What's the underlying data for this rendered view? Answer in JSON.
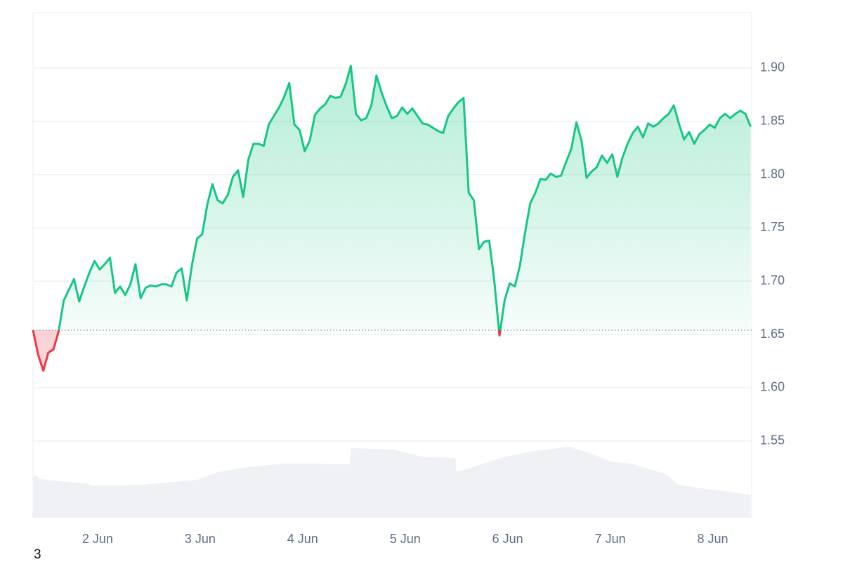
{
  "chart_data": {
    "type": "price-area",
    "color": "#16c784",
    "negative_color": "#ea3943",
    "grid": true,
    "xlim": [
      1.37,
      8.38
    ],
    "ylim": [
      1.478,
      1.952
    ],
    "xticks": [
      {
        "value": 2,
        "label": "2 Jun"
      },
      {
        "value": 3,
        "label": "3 Jun"
      },
      {
        "value": 4,
        "label": "4 Jun"
      },
      {
        "value": 5,
        "label": "5 Jun"
      },
      {
        "value": 6,
        "label": "6 Jun"
      },
      {
        "value": 7,
        "label": "7 Jun"
      },
      {
        "value": 8,
        "label": "8 Jun"
      }
    ],
    "yticks": [
      1.55,
      {
        "value": 1.6,
        "label": "1.60"
      },
      1.65,
      {
        "value": 1.7,
        "label": "1.70"
      },
      1.75,
      {
        "value": 1.8,
        "label": "1.80"
      },
      1.85,
      {
        "value": 1.9,
        "label": "1.90"
      }
    ],
    "x": [
      1.37,
      1.42,
      1.47,
      1.52,
      1.57,
      1.62,
      1.67,
      1.72,
      1.77,
      1.82,
      1.87,
      1.92,
      1.97,
      2.02,
      2.07,
      2.12,
      2.17,
      2.22,
      2.27,
      2.32,
      2.37,
      2.42,
      2.47,
      2.52,
      2.57,
      2.62,
      2.67,
      2.72,
      2.77,
      2.82,
      2.87,
      2.92,
      2.97,
      3.02,
      3.07,
      3.12,
      3.17,
      3.22,
      3.27,
      3.32,
      3.37,
      3.42,
      3.47,
      3.52,
      3.57,
      3.62,
      3.67,
      3.72,
      3.77,
      3.82,
      3.87,
      3.92,
      3.97,
      4.02,
      4.07,
      4.12,
      4.17,
      4.22,
      4.27,
      4.32,
      4.37,
      4.42,
      4.47,
      4.52,
      4.57,
      4.62,
      4.67,
      4.72,
      4.77,
      4.82,
      4.87,
      4.92,
      4.97,
      5.02,
      5.07,
      5.12,
      5.17,
      5.22,
      5.27,
      5.32,
      5.37,
      5.42,
      5.47,
      5.52,
      5.57,
      5.62,
      5.67,
      5.72,
      5.77,
      5.82,
      5.87,
      5.92,
      5.97,
      6.02,
      6.07,
      6.12,
      6.17,
      6.22,
      6.27,
      6.32,
      6.37,
      6.42,
      6.47,
      6.52,
      6.57,
      6.62,
      6.67,
      6.72,
      6.77,
      6.82,
      6.87,
      6.92,
      6.97,
      7.02,
      7.07,
      7.12,
      7.17,
      7.22,
      7.27,
      7.32,
      7.37,
      7.42,
      7.47,
      7.52,
      7.57,
      7.62,
      7.67,
      7.72,
      7.77,
      7.82,
      7.87,
      7.92,
      7.97,
      8.02,
      8.07,
      8.12,
      8.17,
      8.22,
      8.27,
      8.32,
      8.37
    ],
    "values": [
      1.654,
      1.631,
      1.616,
      1.633,
      1.636,
      1.653,
      1.682,
      1.692,
      1.702,
      1.681,
      1.695,
      1.708,
      1.719,
      1.711,
      1.716,
      1.722,
      1.689,
      1.695,
      1.687,
      1.697,
      1.716,
      1.684,
      1.694,
      1.696,
      1.695,
      1.697,
      1.697,
      1.695,
      1.708,
      1.712,
      1.682,
      1.715,
      1.74,
      1.744,
      1.772,
      1.791,
      1.776,
      1.773,
      1.781,
      1.798,
      1.804,
      1.779,
      1.814,
      1.829,
      1.829,
      1.827,
      1.847,
      1.855,
      1.863,
      1.873,
      1.886,
      1.847,
      1.842,
      1.822,
      1.832,
      1.856,
      1.862,
      1.866,
      1.874,
      1.872,
      1.873,
      1.885,
      1.902,
      1.857,
      1.851,
      1.853,
      1.865,
      1.893,
      1.877,
      1.864,
      1.853,
      1.855,
      1.863,
      1.857,
      1.862,
      1.855,
      1.848,
      1.847,
      1.844,
      1.841,
      1.839,
      1.855,
      1.862,
      1.868,
      1.872,
      1.783,
      1.776,
      1.73,
      1.737,
      1.738,
      1.7,
      1.649,
      1.682,
      1.698,
      1.695,
      1.715,
      1.746,
      1.773,
      1.783,
      1.796,
      1.795,
      1.801,
      1.798,
      1.799,
      1.812,
      1.824,
      1.849,
      1.832,
      1.797,
      1.803,
      1.807,
      1.818,
      1.811,
      1.819,
      1.798,
      1.816,
      1.829,
      1.839,
      1.845,
      1.835,
      1.848,
      1.845,
      1.848,
      1.853,
      1.857,
      1.865,
      1.848,
      1.833,
      1.84,
      1.829,
      1.838,
      1.842,
      1.847,
      1.844,
      1.853,
      1.857,
      1.853,
      1.857,
      1.86,
      1.857,
      1.845
    ],
    "volume": {
      "axis": "y2",
      "color": "#eff1f4",
      "x": [
        1.37,
        1.46,
        1.66,
        1.9,
        1.94,
        2.42,
        2.69,
        2.97,
        3.17,
        3.45,
        3.79,
        4.13,
        4.46,
        4.47,
        4.88,
        5.16,
        5.49,
        5.5,
        5.71,
        5.98,
        6.26,
        6.6,
        6.8,
        7.01,
        7.21,
        7.55,
        7.66,
        7.9,
        8.17,
        8.37
      ],
      "values": [
        8.6,
        7.6,
        7.2,
        6.8,
        6.4,
        6.5,
        7.0,
        7.5,
        9.0,
        10.0,
        10.7,
        10.7,
        10.6,
        13.8,
        13.5,
        12.1,
        11.8,
        9.0,
        10.4,
        12.1,
        13.2,
        14.0,
        12.8,
        11.1,
        10.7,
        8.6,
        6.5,
        5.8,
        5.1,
        4.5
      ]
    },
    "y2lim": [
      0,
      100
    ],
    "footnote": "3"
  }
}
